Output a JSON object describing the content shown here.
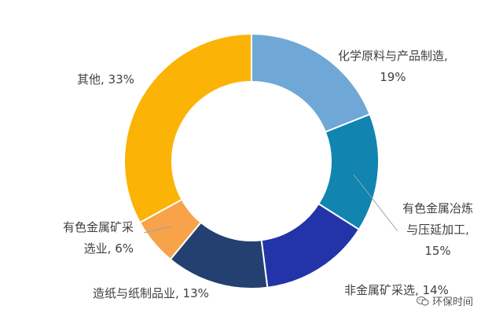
{
  "chart_data": {
    "type": "pie",
    "donut": true,
    "legend": "none",
    "slices": [
      {
        "name": "化学原料与产品制造",
        "value": 19,
        "color": "#6fa8d6"
      },
      {
        "name": "有色金属冶炼与压延加工",
        "value": 15,
        "color": "#1184b0"
      },
      {
        "name": "非金属矿采选",
        "value": 14,
        "color": "#2234a8"
      },
      {
        "name": "造纸与纸制品业",
        "value": 13,
        "color": "#234070"
      },
      {
        "name": "有色金属矿采选",
        "value": 6,
        "color": "#f8a24a"
      },
      {
        "name": "其他",
        "value": 33,
        "color": "#fbb305"
      }
    ],
    "labels": [
      {
        "lines": [
          "化学原料与产品制造,",
          "19%"
        ]
      },
      {
        "lines": [
          "有色金属冶炼",
          "与压延加工,",
          "15%"
        ]
      },
      {
        "lines": [
          "非金属矿采选, 14%"
        ]
      },
      {
        "lines": [
          "造纸与纸制品业, 13%"
        ]
      },
      {
        "lines": [
          "有色金属矿采",
          "选业, 6%"
        ]
      },
      {
        "lines": [
          "其他, 33%"
        ]
      }
    ]
  },
  "watermark": {
    "text": "环保时间",
    "icon": "wechat-icon"
  }
}
